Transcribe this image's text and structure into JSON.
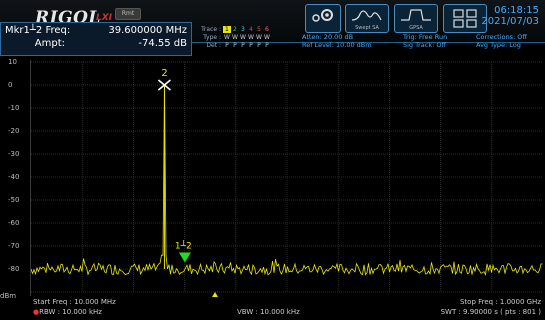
{
  "header": {
    "brand": "RIGOL",
    "lxi": "LXI",
    "rmt": "Rmt",
    "time": "06:18:15",
    "date": "2021/07/03"
  },
  "marker": {
    "label_freq": "Mkr1┴2 Freq:",
    "freq": "39.600000 MHz",
    "label_ampt": "Ampt:",
    "ampt": "-74.55 dB"
  },
  "traces": {
    "trace_label": "Trace :",
    "type_label": "Type :",
    "det_label": "Det :",
    "numbers": [
      "1",
      "2",
      "3",
      "4",
      "5",
      "6"
    ],
    "types": [
      "W",
      "W",
      "W",
      "W",
      "W",
      "W"
    ],
    "dets": [
      "P",
      "P",
      "P",
      "P",
      "P",
      "P"
    ]
  },
  "measure": {
    "atten": "Atten: 20.00 dB",
    "ref_level": "Ref Level: 10.00 dBm",
    "trig": "Trig: Free Run",
    "sig_track": "Sig Track: Off",
    "corrections": "Corrections: Off",
    "avg_type": "Avg Type: Log"
  },
  "toolbar": {
    "sweep_label": "Swept SA",
    "gpsa_label": "GPSA"
  },
  "axis": {
    "unit": "dBm",
    "ticks": [
      "10",
      "0",
      "-10",
      "-20",
      "-30",
      "-40",
      "-50",
      "-60",
      "-70",
      "-80"
    ]
  },
  "footer": {
    "start_freq": "Start Freq : 10.000 MHz",
    "stop_freq": "Stop Freq : 1.0000 GHz",
    "rbw": "RBW : 10.000 kHz",
    "vbw": "VBW : 10.000 kHz",
    "swt": "SWT : 9.90000 s ( pts : 801 )"
  },
  "annotations": {
    "marker2_label": "2",
    "marker1_label": "1┴2"
  },
  "colors": {
    "trace": "#e8e800",
    "marker1": "#22dd22",
    "marker2": "#ffffff",
    "grid": "#3a3a3a",
    "accent": "#4aaaff"
  },
  "chart_data": {
    "type": "line",
    "ylabel": "dBm",
    "ylim": [
      -90,
      10
    ],
    "xlim_mhz": [
      10,
      1000
    ],
    "noise_floor_dbm": -80,
    "peak": {
      "x_mhz": 268,
      "y_dbm": 0
    },
    "markers": [
      {
        "name": "2",
        "x_mhz": 268,
        "y_dbm": 0
      },
      {
        "name": "1┴2",
        "x_mhz": 307.6,
        "y_dbm": -74.55
      }
    ]
  }
}
